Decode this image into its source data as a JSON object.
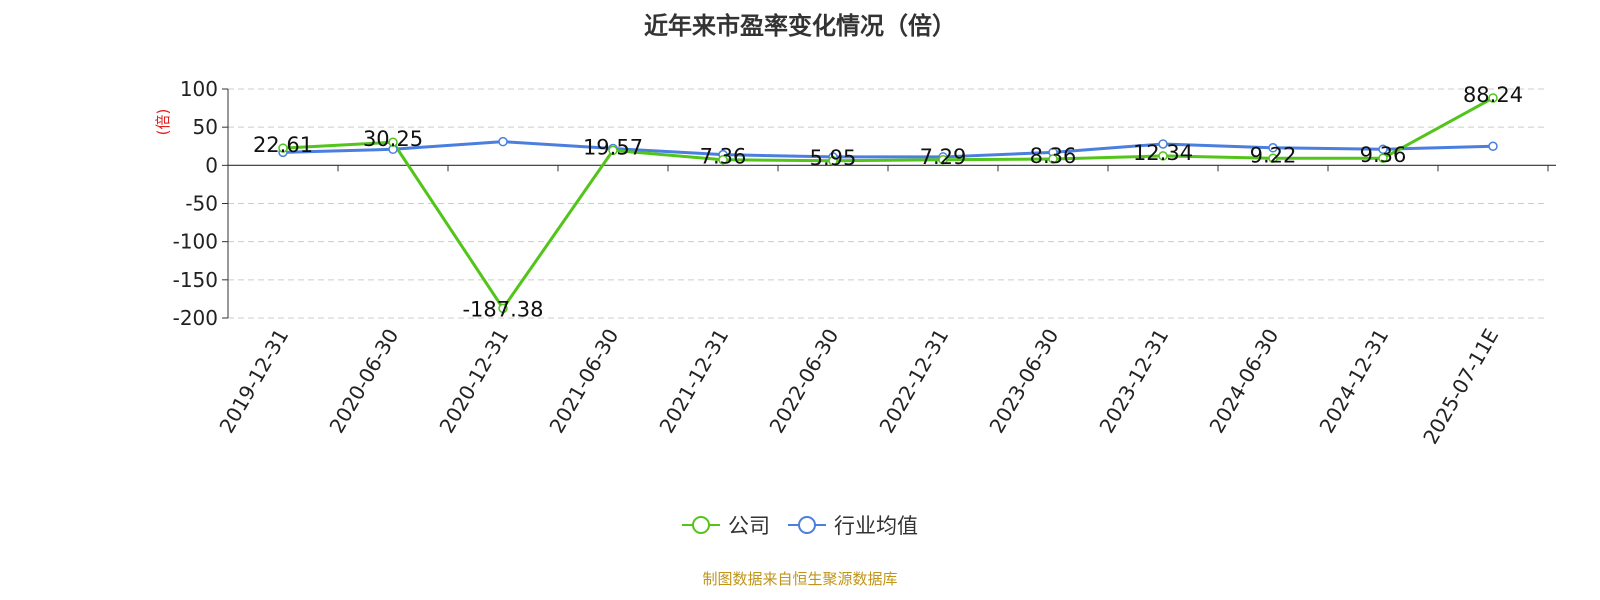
{
  "title": "近年来市盈率变化情况（倍）",
  "source": "制图数据来自恒生聚源数据库",
  "colors": {
    "company": "#52c41a",
    "industry": "#4a7fe0",
    "unit_label": "#e02020",
    "source": "#c0941a",
    "grid": "#cccccc",
    "axis": "#333333"
  },
  "chart_data": {
    "type": "line",
    "title": "近年来市盈率变化情况（倍）",
    "ylabel": "(倍)",
    "ylim": [
      -200,
      100
    ],
    "yticks": [
      100,
      50,
      0,
      -50,
      -100,
      -150,
      -200
    ],
    "grid": true,
    "legend_position": "bottom",
    "categories": [
      "2019-12-31",
      "2020-06-30",
      "2020-12-31",
      "2021-06-30",
      "2021-12-31",
      "2022-06-30",
      "2022-12-31",
      "2023-06-30",
      "2023-12-31",
      "2024-06-30",
      "2024-12-31",
      "2025-07-11E"
    ],
    "series": [
      {
        "name": "公司",
        "color": "#52c41a",
        "values": [
          22.61,
          30.25,
          -187.38,
          19.57,
          7.36,
          5.95,
          7.29,
          8.36,
          12.34,
          9.22,
          9.36,
          88.24
        ],
        "labels": [
          "22.61",
          "30.25",
          "-187.38",
          "19.57",
          "7.36",
          "5.95",
          "7.29",
          "8.36",
          "12.34",
          "9.22",
          "9.36",
          "88.24"
        ]
      },
      {
        "name": "行业均值",
        "color": "#4a7fe0",
        "values": [
          17,
          21,
          31,
          22,
          14,
          11,
          11,
          17,
          28,
          23,
          21,
          25
        ]
      }
    ]
  }
}
